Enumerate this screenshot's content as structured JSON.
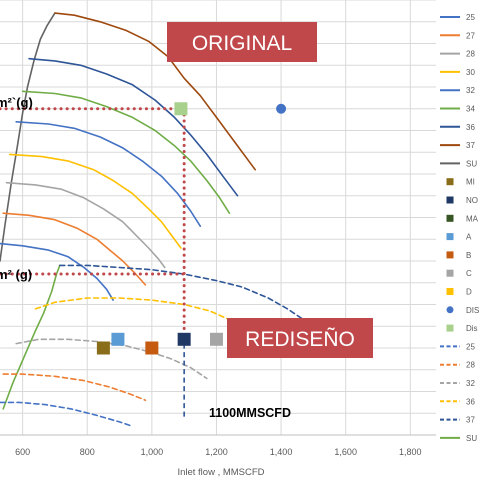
{
  "chart_data": {
    "type": "line",
    "xlabel": "Inlet flow , MMSCFD",
    "x_ticks": [
      "600",
      "800",
      "1,000",
      "1,200",
      "1,400",
      "1,600",
      "1,800"
    ],
    "xlim": [
      530,
      1830
    ],
    "ylim": [
      0,
      100
    ],
    "grid": true,
    "legend_placement": "right",
    "annotations": {
      "original_banner": "ORIGINAL",
      "redesign_banner": "REDISEÑO",
      "flow_marker": "1100MMSCFD",
      "upper_value_label": "m²`(g)",
      "lower_value_label": "m² (g)",
      "flow_marker_x": 1100,
      "upper_reference_y": 75,
      "lower_reference_y": 37
    },
    "legend": [
      {
        "label": "25",
        "color": "#4472c4",
        "style": "solid"
      },
      {
        "label": "27",
        "color": "#ed7d31",
        "style": "solid"
      },
      {
        "label": "28",
        "color": "#a5a5a5",
        "style": "solid"
      },
      {
        "label": "30",
        "color": "#ffc000",
        "style": "solid"
      },
      {
        "label": "32",
        "color": "#4472c4",
        "style": "solid"
      },
      {
        "label": "34",
        "color": "#70ad47",
        "style": "solid"
      },
      {
        "label": "36",
        "color": "#2e5597",
        "style": "solid"
      },
      {
        "label": "37",
        "color": "#9e480e",
        "style": "solid"
      },
      {
        "label": "SU",
        "color": "#636363",
        "style": "solid"
      },
      {
        "label": "MI",
        "color": "#8a6d1a",
        "style": "square"
      },
      {
        "label": "NO",
        "color": "#1f3864",
        "style": "square"
      },
      {
        "label": "MA",
        "color": "#375623",
        "style": "square"
      },
      {
        "label": "A",
        "color": "#5b9bd5",
        "style": "square"
      },
      {
        "label": "B",
        "color": "#c55a11",
        "style": "square"
      },
      {
        "label": "C",
        "color": "#a5a5a5",
        "style": "square"
      },
      {
        "label": "D",
        "color": "#ffc000",
        "style": "square"
      },
      {
        "label": "DIS",
        "color": "#4472c4",
        "style": "circle"
      },
      {
        "label": "Dis",
        "color": "#a9d18e",
        "style": "square"
      },
      {
        "label": "25",
        "color": "#4472c4",
        "style": "dashed"
      },
      {
        "label": "28",
        "color": "#ed7d31",
        "style": "dashed"
      },
      {
        "label": "32",
        "color": "#a5a5a5",
        "style": "dashed"
      },
      {
        "label": "36",
        "color": "#ffc000",
        "style": "dashed"
      },
      {
        "label": "37",
        "color": "#2e5597",
        "style": "dashed"
      },
      {
        "label": "SU",
        "color": "#70ad47",
        "style": "solid"
      }
    ],
    "series": [
      {
        "color": "#636363",
        "dash": false,
        "x": [
          530,
          545,
          565,
          585,
          600,
          615,
          635,
          655,
          675,
          700
        ],
        "y": [
          40,
          48,
          58,
          67,
          74,
          80,
          86,
          91,
          94,
          97
        ]
      },
      {
        "color": "#9e480e",
        "dash": false,
        "x": [
          700,
          760,
          840,
          920,
          990,
          1050,
          1100,
          1150,
          1200,
          1260,
          1320
        ],
        "y": [
          97,
          96.5,
          95,
          93,
          90.5,
          87,
          82,
          78,
          73,
          67,
          61
        ]
      },
      {
        "color": "#2e5597",
        "dash": false,
        "x": [
          620,
          700,
          780,
          860,
          940,
          1010,
          1070,
          1120,
          1170,
          1220,
          1265
        ],
        "y": [
          86.5,
          86,
          85,
          83,
          80.5,
          77,
          73,
          69,
          64.5,
          59.5,
          55
        ]
      },
      {
        "color": "#70ad47",
        "dash": false,
        "x": [
          600,
          700,
          780,
          860,
          940,
          1010,
          1070,
          1120,
          1170,
          1210,
          1240
        ],
        "y": [
          79,
          78.5,
          77.5,
          75.5,
          73,
          70,
          66.5,
          63,
          58.5,
          54.5,
          51
        ]
      },
      {
        "color": "#4472c4",
        "dash": false,
        "x": [
          580,
          680,
          760,
          840,
          910,
          970,
          1030,
          1080,
          1120,
          1150
        ],
        "y": [
          72,
          71.5,
          70.5,
          68.5,
          66,
          63,
          59.5,
          55.5,
          51.5,
          48
        ]
      },
      {
        "color": "#ffc000",
        "dash": false,
        "x": [
          560,
          660,
          740,
          820,
          880,
          940,
          990,
          1030,
          1060,
          1090
        ],
        "y": [
          64.5,
          64,
          63,
          61,
          58.5,
          55.5,
          52,
          49,
          46,
          43
        ]
      },
      {
        "color": "#a5a5a5",
        "dash": false,
        "x": [
          550,
          640,
          720,
          790,
          850,
          910,
          950,
          990,
          1020,
          1040
        ],
        "y": [
          58,
          57.5,
          56.5,
          54.5,
          52,
          49,
          46,
          43,
          40.5,
          38.5
        ]
      },
      {
        "color": "#ed7d31",
        "dash": false,
        "x": [
          540,
          620,
          700,
          770,
          830,
          870,
          910,
          950,
          980
        ],
        "y": [
          51,
          50.5,
          49.5,
          47.5,
          45,
          42.5,
          40,
          37,
          34.5
        ]
      },
      {
        "color": "#4472c4",
        "dash": false,
        "x": [
          530,
          600,
          680,
          740,
          790,
          830,
          860,
          880
        ],
        "y": [
          44,
          43.5,
          42.5,
          41,
          38.5,
          36,
          33.5,
          31
        ]
      },
      {
        "color": "#70ad47",
        "dash": false,
        "x": [
          540,
          570,
          605,
          640,
          665,
          690,
          705,
          715
        ],
        "y": [
          6,
          12,
          18,
          24,
          28,
          33,
          37,
          39
        ]
      },
      {
        "color": "#2e5597",
        "dash": true,
        "x": [
          715,
          800,
          900,
          1000,
          1100,
          1200,
          1280,
          1360,
          1420,
          1480,
          1540,
          1590
        ],
        "y": [
          39,
          39,
          38.5,
          38,
          37,
          35.5,
          34,
          31.5,
          29,
          26,
          22.5,
          19
        ]
      },
      {
        "color": "#ffc000",
        "dash": true,
        "x": [
          640,
          700,
          800,
          900,
          1000,
          1100,
          1180,
          1240,
          1280,
          1300
        ],
        "y": [
          29,
          30.5,
          31.5,
          31.5,
          31,
          30,
          28.5,
          26.5,
          24.5,
          23
        ]
      },
      {
        "color": "#a5a5a5",
        "dash": true,
        "x": [
          580,
          650,
          740,
          830,
          920,
          1000,
          1060,
          1120,
          1170
        ],
        "y": [
          21,
          22,
          22,
          21.5,
          20.5,
          19,
          17.5,
          15.5,
          13
        ]
      },
      {
        "color": "#ed7d31",
        "dash": true,
        "x": [
          540,
          600,
          700,
          790,
          870,
          930,
          980
        ],
        "y": [
          14,
          14,
          13.5,
          12.5,
          11,
          9.5,
          8
        ]
      },
      {
        "color": "#4472c4",
        "dash": true,
        "x": [
          530,
          590,
          670,
          750,
          830,
          900,
          940
        ],
        "y": [
          7.5,
          7.5,
          7,
          6,
          4.5,
          3,
          2
        ]
      }
    ],
    "points": [
      {
        "label": "MI",
        "shape": "square",
        "color": "#8a6d1a",
        "x": 850,
        "y": 20
      },
      {
        "label": "A",
        "shape": "square",
        "color": "#5b9bd5",
        "x": 895,
        "y": 22
      },
      {
        "label": "B",
        "shape": "square",
        "color": "#c55a11",
        "x": 1000,
        "y": 20
      },
      {
        "label": "NO",
        "shape": "square",
        "color": "#1f3864",
        "x": 1100,
        "y": 22
      },
      {
        "label": "C",
        "shape": "square",
        "color": "#a5a5a5",
        "x": 1200,
        "y": 22
      },
      {
        "label": "D",
        "shape": "square",
        "color": "#ffc000",
        "x": 1300,
        "y": 25
      },
      {
        "label": "MA",
        "shape": "square",
        "color": "#375623",
        "x": 1400,
        "y": 25
      },
      {
        "label": "Dis",
        "shape": "square",
        "color": "#a9d18e",
        "x": 1090,
        "y": 75
      },
      {
        "label": "DIS",
        "shape": "circle",
        "color": "#4472c4",
        "x": 1400,
        "y": 75
      }
    ]
  }
}
